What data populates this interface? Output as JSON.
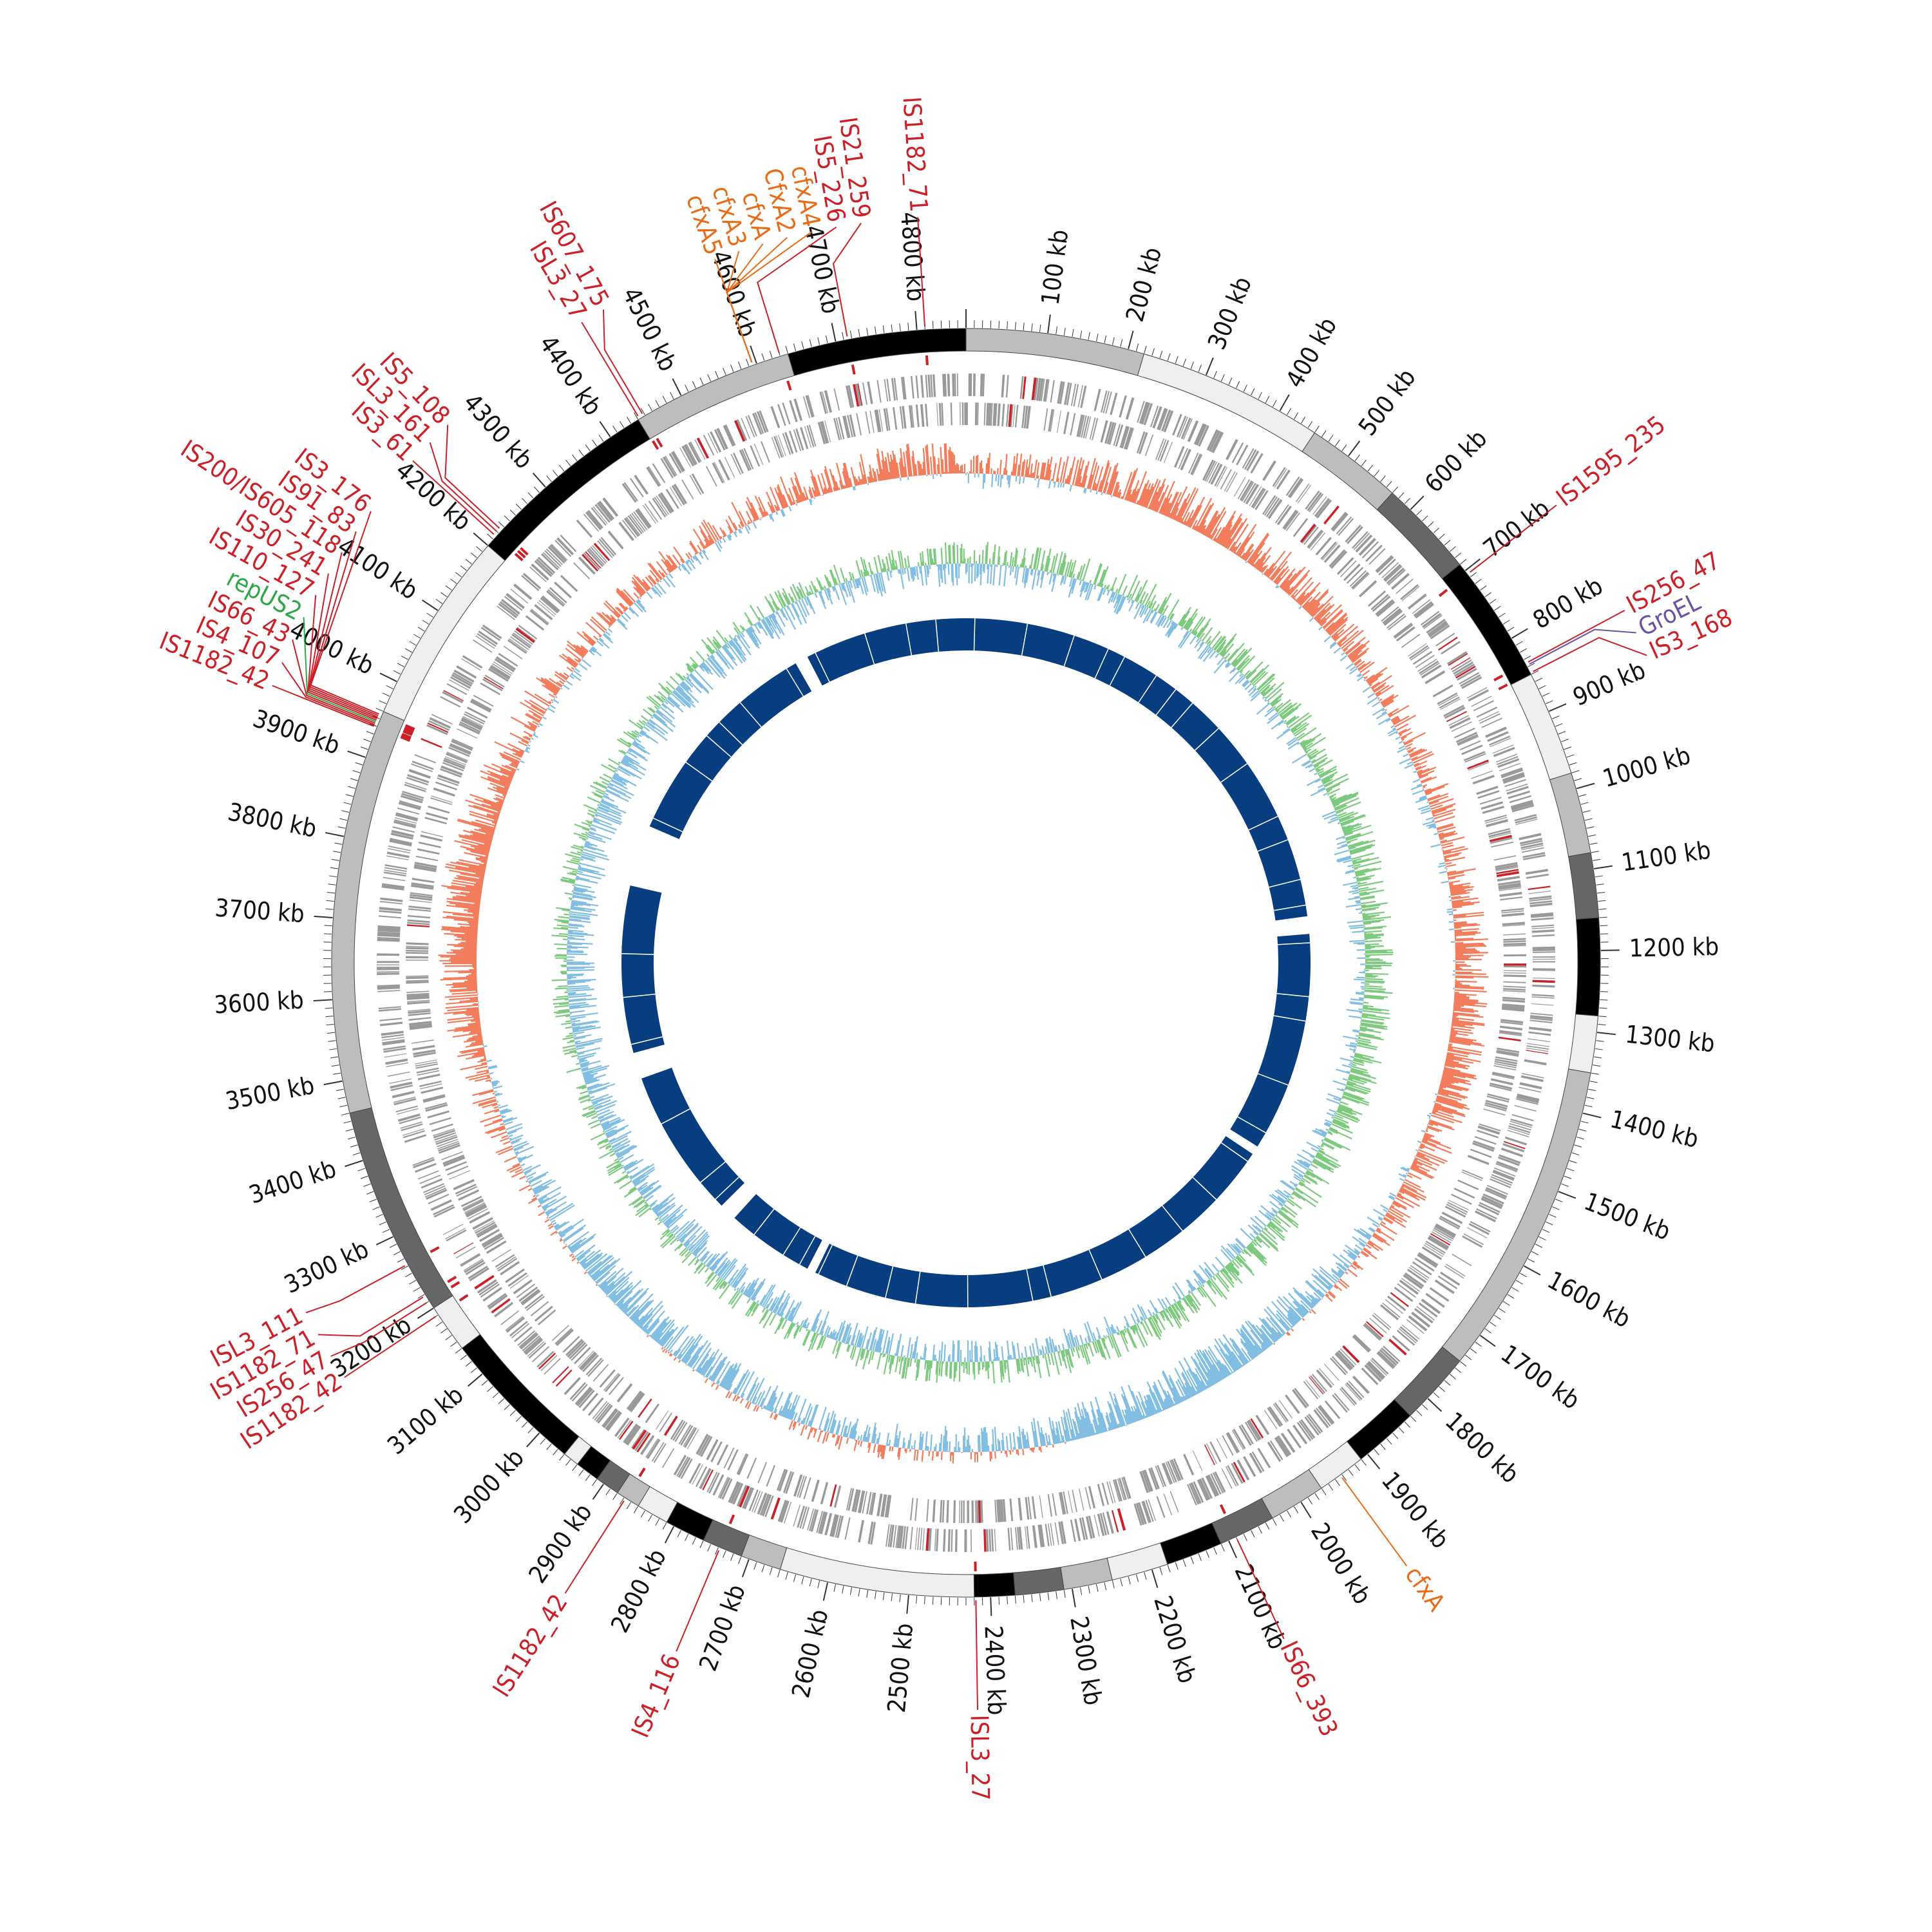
{
  "genome": {
    "length_kb": 4860,
    "tick_major_kb": 100,
    "tick_minor_kb": 10,
    "tick_unit": "kb"
  },
  "colors": {
    "is_element": "#cc1f27",
    "antibiotic": "#ea6b16",
    "groel": "#6a51a3",
    "plasmid": "#2ea74a",
    "gc_content_pos": "#f27c5b",
    "gc_content_neg": "#82bde2",
    "gc_skew_pos": "#7dca7f",
    "gc_skew_neg": "#82bde2",
    "blast_hits": "#083d7f",
    "cds": "#999999"
  },
  "contig_blocks": [
    {
      "start": 0,
      "end": 220,
      "shade": "#bdbdbd"
    },
    {
      "start": 220,
      "end": 450,
      "shade": "#efefef"
    },
    {
      "start": 450,
      "end": 570,
      "shade": "#bdbdbd"
    },
    {
      "start": 570,
      "end": 690,
      "shade": "#666666"
    },
    {
      "start": 690,
      "end": 850,
      "shade": "#000000"
    },
    {
      "start": 850,
      "end": 980,
      "shade": "#efefef"
    },
    {
      "start": 980,
      "end": 1080,
      "shade": "#bdbdbd"
    },
    {
      "start": 1080,
      "end": 1160,
      "shade": "#666666"
    },
    {
      "start": 1160,
      "end": 1280,
      "shade": "#000000"
    },
    {
      "start": 1280,
      "end": 1350,
      "shade": "#efefef"
    },
    {
      "start": 1350,
      "end": 1740,
      "shade": "#bdbdbd"
    },
    {
      "start": 1740,
      "end": 1830,
      "shade": "#666666"
    },
    {
      "start": 1830,
      "end": 1910,
      "shade": "#000000"
    },
    {
      "start": 1910,
      "end": 1970,
      "shade": "#efefef"
    },
    {
      "start": 1970,
      "end": 2040,
      "shade": "#bdbdbd"
    },
    {
      "start": 2040,
      "end": 2110,
      "shade": "#666666"
    },
    {
      "start": 2110,
      "end": 2180,
      "shade": "#000000"
    },
    {
      "start": 2180,
      "end": 2250,
      "shade": "#efefef"
    },
    {
      "start": 2250,
      "end": 2310,
      "shade": "#bdbdbd"
    },
    {
      "start": 2310,
      "end": 2370,
      "shade": "#666666"
    },
    {
      "start": 2370,
      "end": 2420,
      "shade": "#000000"
    },
    {
      "start": 2420,
      "end": 2660,
      "shade": "#efefef"
    },
    {
      "start": 2660,
      "end": 2710,
      "shade": "#bdbdbd"
    },
    {
      "start": 2710,
      "end": 2760,
      "shade": "#666666"
    },
    {
      "start": 2760,
      "end": 2810,
      "shade": "#000000"
    },
    {
      "start": 2810,
      "end": 2850,
      "shade": "#efefef"
    },
    {
      "start": 2850,
      "end": 2880,
      "shade": "#bdbdbd"
    },
    {
      "start": 2880,
      "end": 2910,
      "shade": "#666666"
    },
    {
      "start": 2910,
      "end": 2940,
      "shade": "#000000"
    },
    {
      "start": 2940,
      "end": 2960,
      "shade": "#efefef"
    },
    {
      "start": 2960,
      "end": 3140,
      "shade": "#000000"
    },
    {
      "start": 3140,
      "end": 3200,
      "shade": "#efefef"
    },
    {
      "start": 3200,
      "end": 3460,
      "shade": "#666666"
    },
    {
      "start": 3460,
      "end": 3960,
      "shade": "#bdbdbd"
    },
    {
      "start": 3960,
      "end": 4200,
      "shade": "#efefef"
    },
    {
      "start": 4200,
      "end": 4440,
      "shade": "#000000"
    },
    {
      "start": 4440,
      "end": 4640,
      "shade": "#bdbdbd"
    },
    {
      "start": 4640,
      "end": 4860,
      "shade": "#000000"
    }
  ],
  "features": [
    {
      "label": "IS1182_71",
      "pos": 4810,
      "type": "is_element",
      "side": "left"
    },
    {
      "label": "IS21_259",
      "pos": 4715,
      "type": "is_element",
      "side": "left"
    },
    {
      "label": "IS5_226",
      "pos": 4630,
      "type": "is_element",
      "side": "left"
    },
    {
      "label": "cfxA5",
      "pos": 4595,
      "type": "antibiotic",
      "side": "left"
    },
    {
      "label": "cfxA3",
      "pos": 4595,
      "type": "antibiotic",
      "side": "left"
    },
    {
      "label": "cfxA",
      "pos": 4595,
      "type": "antibiotic",
      "side": "left"
    },
    {
      "label": "CfxA2",
      "pos": 4595,
      "type": "antibiotic",
      "side": "left"
    },
    {
      "label": "cfxA4",
      "pos": 4595,
      "type": "antibiotic",
      "side": "left"
    },
    {
      "label": "IS607_175",
      "pos": 4448,
      "type": "is_element",
      "side": "left"
    },
    {
      "label": "ISL3_27",
      "pos": 4442,
      "type": "is_element",
      "side": "left"
    },
    {
      "label": "IS5_108",
      "pos": 4225,
      "type": "is_element",
      "side": "left"
    },
    {
      "label": "ISL3_161",
      "pos": 4220,
      "type": "is_element",
      "side": "left"
    },
    {
      "label": "IS3_61",
      "pos": 4215,
      "type": "is_element",
      "side": "left"
    },
    {
      "label": "IS3_176",
      "pos": 3955,
      "type": "is_element",
      "side": "left"
    },
    {
      "label": "IS91_83",
      "pos": 3953,
      "type": "is_element",
      "side": "left"
    },
    {
      "label": "IS200/IS605_118",
      "pos": 3951,
      "type": "is_element",
      "side": "left"
    },
    {
      "label": "IS30_241",
      "pos": 3949,
      "type": "is_element",
      "side": "left"
    },
    {
      "label": "IS110_127",
      "pos": 3947,
      "type": "is_element",
      "side": "left"
    },
    {
      "label": "repUS2",
      "pos": 3945,
      "type": "plasmid",
      "side": "left"
    },
    {
      "label": "IS66_43",
      "pos": 3943,
      "type": "is_element",
      "side": "left"
    },
    {
      "label": "IS4_107",
      "pos": 3941,
      "type": "is_element",
      "side": "left"
    },
    {
      "label": "IS1182_42",
      "pos": 3939,
      "type": "is_element",
      "side": "left"
    },
    {
      "label": "IS1595_235",
      "pos": 705,
      "type": "is_element",
      "side": "right"
    },
    {
      "label": "IS256_47",
      "pos": 835,
      "type": "is_element",
      "side": "right"
    },
    {
      "label": "GroEL",
      "pos": 838,
      "type": "groel",
      "side": "right"
    },
    {
      "label": "IS3_168",
      "pos": 848,
      "type": "is_element",
      "side": "right"
    },
    {
      "label": "cfxA",
      "pos": 1942,
      "type": "antibiotic",
      "side": "right"
    },
    {
      "label": "IS66_393",
      "pos": 2090,
      "type": "is_element",
      "side": "right"
    },
    {
      "label": "ISL3_27",
      "pos": 2418,
      "type": "is_element",
      "side": "left"
    },
    {
      "label": "IS4_116",
      "pos": 2738,
      "type": "is_element",
      "side": "left"
    },
    {
      "label": "IS1182_42",
      "pos": 2868,
      "type": "is_element",
      "side": "left"
    },
    {
      "label": "ISL3_111",
      "pos": 3262,
      "type": "is_element",
      "side": "left"
    },
    {
      "label": "IS1182_71",
      "pos": 3218,
      "type": "is_element",
      "side": "left"
    },
    {
      "label": "IS256_47",
      "pos": 3210,
      "type": "is_element",
      "side": "left"
    },
    {
      "label": "IS1182_42",
      "pos": 3190,
      "type": "is_element",
      "side": "left"
    }
  ],
  "blast_gaps": [
    {
      "start": 1110,
      "end": 1150
    },
    {
      "start": 1650,
      "end": 1670
    },
    {
      "start": 2780,
      "end": 2800
    },
    {
      "start": 3000,
      "end": 3040
    },
    {
      "start": 3380,
      "end": 3440
    },
    {
      "start": 3820,
      "end": 3960
    },
    {
      "start": 4460,
      "end": 4490
    }
  ]
}
